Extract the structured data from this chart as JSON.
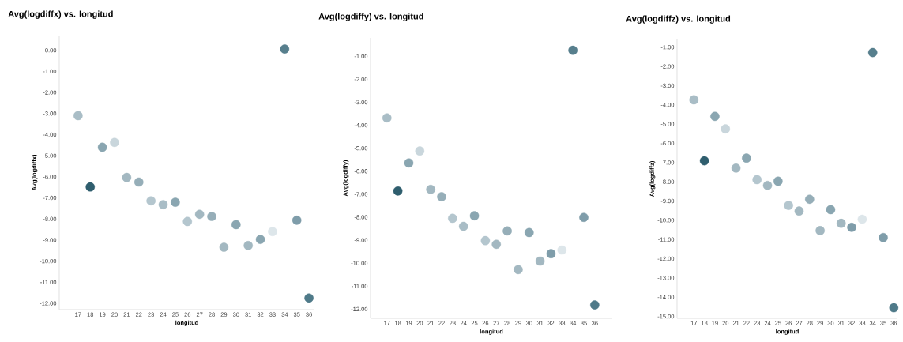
{
  "chart_data": [
    {
      "type": "scatter",
      "title": "Avg(logdiffx) vs. longitud",
      "xlabel": "longitud",
      "ylabel": "Avg(logdiffx)",
      "grid": false,
      "categories": [
        "17",
        "18",
        "19",
        "20",
        "21",
        "22",
        "23",
        "24",
        "25",
        "26",
        "27",
        "28",
        "29",
        "30",
        "31",
        "32",
        "33",
        "34",
        "35",
        "36"
      ],
      "values": [
        -3.1,
        -6.48,
        -4.6,
        -4.37,
        -6.03,
        -6.25,
        -7.14,
        -7.32,
        -7.21,
        -8.12,
        -7.78,
        -7.88,
        -9.34,
        -8.27,
        -9.26,
        -8.97,
        -8.6,
        0.06,
        -8.06,
        -11.75
      ],
      "colors": [
        "#a9bdc6",
        "#2f5e6e",
        "#8aa6b1",
        "#c9d6dc",
        "#a3b8c1",
        "#96aeb8",
        "#b4c6ce",
        "#a9bdc6",
        "#8aa6b1",
        "#b4c6ce",
        "#a3b8c1",
        "#96aeb8",
        "#a3b8c1",
        "#8aa6b1",
        "#a3b8c1",
        "#8aa6b1",
        "#dde6ea",
        "#577f8d",
        "#7f9daa",
        "#4f7a89"
      ],
      "ylim": [
        -12.3,
        0.7
      ],
      "yticks": [
        {
          "value": 0,
          "label": "0.00"
        },
        {
          "value": -1,
          "label": "-1.00"
        },
        {
          "value": -2,
          "label": "-2.00"
        },
        {
          "value": -3,
          "label": "-3.00"
        },
        {
          "value": -4,
          "label": "-4.00"
        },
        {
          "value": -5,
          "label": "-5.00"
        },
        {
          "value": -6,
          "label": "-6.00"
        },
        {
          "value": -7,
          "label": "-7.00"
        },
        {
          "value": -8,
          "label": "-8.00"
        },
        {
          "value": -9,
          "label": "-9.00"
        },
        {
          "value": -10,
          "label": "-10.00"
        },
        {
          "value": -11,
          "label": "-11.00"
        },
        {
          "value": -12,
          "label": "-12.00"
        }
      ]
    },
    {
      "type": "scatter",
      "title": "Avg(logdiffy) vs. longitud",
      "xlabel": "longitud",
      "ylabel": "Avg(logdiffy)",
      "grid": false,
      "categories": [
        "17",
        "18",
        "19",
        "20",
        "21",
        "22",
        "23",
        "24",
        "25",
        "26",
        "27",
        "28",
        "29",
        "30",
        "31",
        "32",
        "33",
        "34",
        "35",
        "36"
      ],
      "values": [
        -3.68,
        -6.86,
        -5.64,
        -5.12,
        -6.79,
        -7.11,
        -8.05,
        -8.4,
        -7.94,
        -9.02,
        -9.18,
        -8.6,
        -10.28,
        -8.67,
        -9.91,
        -9.59,
        -9.43,
        -0.74,
        -8.01,
        -11.82
      ],
      "colors": [
        "#a9bdc6",
        "#2f5e6e",
        "#8aa6b1",
        "#c9d6dc",
        "#a3b8c1",
        "#96aeb8",
        "#b4c6ce",
        "#a9bdc6",
        "#8aa6b1",
        "#b4c6ce",
        "#a3b8c1",
        "#96aeb8",
        "#a3b8c1",
        "#8aa6b1",
        "#a3b8c1",
        "#7f9daa",
        "#dde6ea",
        "#577f8d",
        "#7f9daa",
        "#4f7a89"
      ],
      "ylim": [
        -12.4,
        -0.2
      ],
      "yticks": [
        {
          "value": -1,
          "label": "-1.00"
        },
        {
          "value": -2,
          "label": "-2.00"
        },
        {
          "value": -3,
          "label": "-3.00"
        },
        {
          "value": -4,
          "label": "-4.00"
        },
        {
          "value": -5,
          "label": "-5.00"
        },
        {
          "value": -6,
          "label": "-6.00"
        },
        {
          "value": -7,
          "label": "-7.00"
        },
        {
          "value": -8,
          "label": "-8.00"
        },
        {
          "value": -9,
          "label": "-9.00"
        },
        {
          "value": -10,
          "label": "-10.00"
        },
        {
          "value": -11,
          "label": "-11.00"
        },
        {
          "value": -12,
          "label": "-12.00"
        }
      ]
    },
    {
      "type": "scatter",
      "title": "Avg(logdiffz) vs. longitud",
      "xlabel": "longitud",
      "ylabel": "Avg(logdiffz)",
      "grid": false,
      "categories": [
        "17",
        "18",
        "19",
        "20",
        "21",
        "22",
        "23",
        "24",
        "25",
        "26",
        "27",
        "28",
        "29",
        "30",
        "31",
        "32",
        "33",
        "34",
        "35",
        "36"
      ],
      "values": [
        -3.74,
        -6.91,
        -4.6,
        -5.25,
        -7.29,
        -6.77,
        -7.89,
        -8.19,
        -7.97,
        -9.23,
        -9.52,
        -8.91,
        -10.54,
        -9.45,
        -10.16,
        -10.37,
        -9.95,
        -1.28,
        -10.9,
        -14.55
      ],
      "colors": [
        "#a9bdc6",
        "#2f5e6e",
        "#8aa6b1",
        "#c9d6dc",
        "#a3b8c1",
        "#8aa6b1",
        "#b4c6ce",
        "#a3b8c1",
        "#8aa6b1",
        "#b4c6ce",
        "#a3b8c1",
        "#96aeb8",
        "#a3b8c1",
        "#8aa6b1",
        "#a3b8c1",
        "#7f9daa",
        "#dde6ea",
        "#577f8d",
        "#7f9daa",
        "#4f7a89"
      ],
      "ylim": [
        -15.1,
        -0.6
      ],
      "yticks": [
        {
          "value": -1,
          "label": "-1.00"
        },
        {
          "value": -2,
          "label": "-2.00"
        },
        {
          "value": -3,
          "label": "-3.00"
        },
        {
          "value": -4,
          "label": "-4.00"
        },
        {
          "value": -5,
          "label": "-5.00"
        },
        {
          "value": -6,
          "label": "-6.00"
        },
        {
          "value": -7,
          "label": "-7.00"
        },
        {
          "value": -8,
          "label": "-8.00"
        },
        {
          "value": -9,
          "label": "-9.00"
        },
        {
          "value": -10,
          "label": "-10.00"
        },
        {
          "value": -11,
          "label": "-11.00"
        },
        {
          "value": -12,
          "label": "-12.00"
        },
        {
          "value": -13,
          "label": "-13.00"
        },
        {
          "value": -14,
          "label": "-14.00"
        },
        {
          "value": -15,
          "label": "-15.00"
        }
      ]
    }
  ]
}
